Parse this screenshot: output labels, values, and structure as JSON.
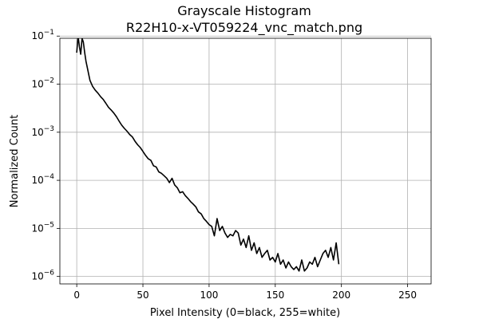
{
  "chart_data": {
    "type": "line",
    "title": [
      "Grayscale Histogram",
      "R22H10-x-VT059224_vnc_match.png"
    ],
    "xlabel": "Pixel Intensity (0=black, 255=white)",
    "ylabel": "Normalized Count",
    "xlim": [
      -12.75,
      267.75
    ],
    "ylim": [
      7e-07,
      0.09
    ],
    "yscale": "log",
    "grid": true,
    "xticks": [
      0,
      50,
      100,
      150,
      200,
      250
    ],
    "xtick_labels": [
      "0",
      "50",
      "100",
      "150",
      "200",
      "250"
    ],
    "yticks": [
      1e-06,
      1e-05,
      0.0001,
      0.001,
      0.01,
      0.1
    ],
    "ytick_labels": [
      {
        "base": "10",
        "exp": "−6"
      },
      {
        "base": "10",
        "exp": "−5"
      },
      {
        "base": "10",
        "exp": "−4"
      },
      {
        "base": "10",
        "exp": "−3"
      },
      {
        "base": "10",
        "exp": "−2"
      },
      {
        "base": "10",
        "exp": "−1"
      }
    ],
    "series": [
      {
        "color": "#000000",
        "points": [
          [
            0,
            0.045
          ],
          [
            1,
            0.1
          ],
          [
            2,
            0.06
          ],
          [
            3,
            0.042
          ],
          [
            4,
            0.09
          ],
          [
            5,
            0.075
          ],
          [
            6,
            0.045
          ],
          [
            7,
            0.03
          ],
          [
            8,
            0.022
          ],
          [
            9,
            0.016
          ],
          [
            10,
            0.012
          ],
          [
            12,
            0.009
          ],
          [
            14,
            0.0075
          ],
          [
            16,
            0.0065
          ],
          [
            18,
            0.0055
          ],
          [
            20,
            0.0048
          ],
          [
            22,
            0.004
          ],
          [
            24,
            0.0033
          ],
          [
            26,
            0.0029
          ],
          [
            28,
            0.0025
          ],
          [
            30,
            0.0021
          ],
          [
            32,
            0.0017
          ],
          [
            34,
            0.0014
          ],
          [
            36,
            0.0012
          ],
          [
            38,
            0.00105
          ],
          [
            40,
            0.0009
          ],
          [
            42,
            0.0008
          ],
          [
            44,
            0.00065
          ],
          [
            46,
            0.00055
          ],
          [
            48,
            0.00048
          ],
          [
            50,
            0.0004
          ],
          [
            52,
            0.00033
          ],
          [
            54,
            0.00028
          ],
          [
            56,
            0.00026
          ],
          [
            58,
            0.0002
          ],
          [
            60,
            0.00019
          ],
          [
            62,
            0.00015
          ],
          [
            64,
            0.00014
          ],
          [
            66,
            0.000125
          ],
          [
            68,
            0.00011
          ],
          [
            70,
            9e-05
          ],
          [
            72,
            0.00011
          ],
          [
            74,
            8e-05
          ],
          [
            76,
            7e-05
          ],
          [
            78,
            5.5e-05
          ],
          [
            80,
            5.8e-05
          ],
          [
            82,
            4.8e-05
          ],
          [
            84,
            4.2e-05
          ],
          [
            86,
            3.6e-05
          ],
          [
            88,
            3.2e-05
          ],
          [
            90,
            2.8e-05
          ],
          [
            92,
            2.2e-05
          ],
          [
            94,
            2e-05
          ],
          [
            96,
            1.6e-05
          ],
          [
            98,
            1.4e-05
          ],
          [
            100,
            1.2e-05
          ],
          [
            102,
            1.1e-05
          ],
          [
            104,
            7e-06
          ],
          [
            106,
            1.6e-05
          ],
          [
            108,
            9e-06
          ],
          [
            110,
            1.1e-05
          ],
          [
            112,
            8e-06
          ],
          [
            114,
            6.5e-06
          ],
          [
            116,
            7.5e-06
          ],
          [
            118,
            7e-06
          ],
          [
            120,
            9e-06
          ],
          [
            122,
            8e-06
          ],
          [
            124,
            4.5e-06
          ],
          [
            126,
            6e-06
          ],
          [
            128,
            4e-06
          ],
          [
            130,
            7e-06
          ],
          [
            132,
            3.5e-06
          ],
          [
            134,
            5e-06
          ],
          [
            136,
            3e-06
          ],
          [
            138,
            4e-06
          ],
          [
            140,
            2.5e-06
          ],
          [
            142,
            3e-06
          ],
          [
            144,
            3.5e-06
          ],
          [
            146,
            2.2e-06
          ],
          [
            148,
            2.5e-06
          ],
          [
            150,
            2e-06
          ],
          [
            152,
            3e-06
          ],
          [
            154,
            1.8e-06
          ],
          [
            156,
            2.2e-06
          ],
          [
            158,
            1.5e-06
          ],
          [
            160,
            2e-06
          ],
          [
            162,
            1.6e-06
          ],
          [
            164,
            1.4e-06
          ],
          [
            166,
            1.6e-06
          ],
          [
            168,
            1.3e-06
          ],
          [
            170,
            2.2e-06
          ],
          [
            172,
            1.3e-06
          ],
          [
            174,
            1.5e-06
          ],
          [
            176,
            2e-06
          ],
          [
            178,
            1.8e-06
          ],
          [
            180,
            2.5e-06
          ],
          [
            182,
            1.6e-06
          ],
          [
            184,
            2.2e-06
          ],
          [
            186,
            3e-06
          ],
          [
            188,
            3.5e-06
          ],
          [
            190,
            2.5e-06
          ],
          [
            192,
            4e-06
          ],
          [
            194,
            2.2e-06
          ],
          [
            196,
            5e-06
          ],
          [
            198,
            1.8e-06
          ]
        ]
      }
    ]
  }
}
